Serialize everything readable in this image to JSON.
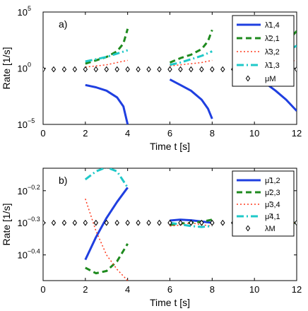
{
  "chart_data": [
    {
      "type": "line",
      "panel_label": "a)",
      "xlabel": "Time t [s]",
      "ylabel": "Rate [1/s]",
      "xlim": [
        0,
        12
      ],
      "xticks": [
        0,
        2,
        4,
        6,
        8,
        10,
        12
      ],
      "yscale": "log",
      "ylim_log10": [
        -5,
        5
      ],
      "yticks": [
        {
          "exp": -5,
          "label": "10",
          "sup": "−5"
        },
        {
          "exp": 0,
          "label": "10",
          "sup": "0"
        },
        {
          "exp": 5,
          "label": "10",
          "sup": "5"
        }
      ],
      "grid": false,
      "legend_position": "top-right",
      "series": [
        {
          "name": "λ̃1,4",
          "color": "#1f3fe0",
          "style": "solid",
          "width": 3,
          "segments": [
            [
              [
                2.0,
                -1.5
              ],
              [
                2.5,
                -1.7
              ],
              [
                3.0,
                -2.0
              ],
              [
                3.5,
                -2.6
              ],
              [
                3.8,
                -3.4
              ],
              [
                4.0,
                -5.0
              ]
            ],
            [
              [
                6.0,
                -1.0
              ],
              [
                6.5,
                -1.5
              ],
              [
                7.0,
                -2.0
              ],
              [
                7.5,
                -2.8
              ],
              [
                7.8,
                -3.6
              ],
              [
                8.0,
                -4.5
              ]
            ],
            [
              [
                10.0,
                -0.8
              ],
              [
                10.5,
                -1.3
              ],
              [
                11.0,
                -2.0
              ],
              [
                11.5,
                -2.8
              ],
              [
                12.0,
                -3.8
              ]
            ]
          ]
        },
        {
          "name": "λ̃2,1",
          "color": "#1e8a1e",
          "style": "dashed",
          "width": 3,
          "segments": [
            [
              [
                2.0,
                0.4
              ],
              [
                2.5,
                0.7
              ],
              [
                3.0,
                1.0
              ],
              [
                3.5,
                1.5
              ],
              [
                3.8,
                2.2
              ],
              [
                4.0,
                3.5
              ]
            ],
            [
              [
                6.0,
                0.5
              ],
              [
                6.5,
                0.9
              ],
              [
                7.0,
                1.2
              ],
              [
                7.5,
                1.7
              ],
              [
                7.8,
                2.4
              ],
              [
                8.0,
                3.4
              ]
            ],
            [
              [
                10.0,
                0.8
              ],
              [
                10.5,
                1.2
              ],
              [
                11.0,
                1.6
              ],
              [
                11.5,
                2.3
              ],
              [
                12.0,
                3.3
              ]
            ]
          ]
        },
        {
          "name": "λ̃3,2",
          "color": "#ff3b1f",
          "style": "dotted",
          "width": 1.5,
          "segments": [
            [
              [
                2.0,
                0.1
              ],
              [
                2.5,
                0.2
              ],
              [
                3.0,
                0.3
              ],
              [
                3.5,
                0.5
              ],
              [
                4.0,
                0.7
              ]
            ],
            [
              [
                6.0,
                0.2
              ],
              [
                6.5,
                0.3
              ],
              [
                7.0,
                0.4
              ],
              [
                7.5,
                0.5
              ],
              [
                8.0,
                0.7
              ]
            ],
            [
              [
                10.0,
                0.3
              ],
              [
                10.5,
                0.4
              ],
              [
                11.0,
                0.5
              ],
              [
                11.5,
                0.6
              ],
              [
                12.0,
                0.7
              ]
            ]
          ]
        },
        {
          "name": "λ̃1,3",
          "color": "#1fc8c8",
          "style": "dashdot",
          "width": 3,
          "segments": [
            [
              [
                2.0,
                0.6
              ],
              [
                2.5,
                0.8
              ],
              [
                3.0,
                1.0
              ],
              [
                3.5,
                1.3
              ],
              [
                4.0,
                1.6
              ]
            ],
            [
              [
                6.0,
                0.3
              ],
              [
                6.5,
                0.5
              ],
              [
                7.0,
                0.8
              ],
              [
                7.5,
                1.1
              ],
              [
                8.0,
                1.5
              ]
            ],
            [
              [
                10.0,
                0.5
              ],
              [
                10.5,
                0.8
              ],
              [
                11.0,
                1.1
              ],
              [
                11.5,
                1.5
              ],
              [
                12.0,
                2.0
              ]
            ]
          ]
        },
        {
          "name": "μM",
          "color": "#000000",
          "style": "marker-diamond",
          "points_x": [
            0,
            0.5,
            1,
            1.5,
            2,
            2.5,
            3,
            3.5,
            4,
            4.5,
            5,
            5.5,
            6,
            6.5,
            7,
            7.5,
            8,
            8.5,
            9,
            9.5,
            10,
            10.5,
            11,
            11.5,
            12
          ],
          "value_log10": -0.1
        }
      ]
    },
    {
      "type": "line",
      "panel_label": "b)",
      "xlabel": "Time t [s]",
      "ylabel": "Rate [1/s]",
      "xlim": [
        0,
        12
      ],
      "xticks": [
        0,
        2,
        4,
        6,
        8,
        10,
        12
      ],
      "yscale": "log",
      "ylim_log10": [
        -0.48,
        -0.13
      ],
      "yticks": [
        {
          "exp": -0.4,
          "label": "10",
          "sup": "−0.4"
        },
        {
          "exp": -0.3,
          "label": "10",
          "sup": "−0.3"
        },
        {
          "exp": -0.2,
          "label": "10",
          "sup": "−0.2"
        }
      ],
      "grid": false,
      "legend_position": "top-right",
      "series": [
        {
          "name": "μ̃1,2",
          "color": "#1f3fe0",
          "style": "solid",
          "width": 3,
          "segments": [
            [
              [
                2.0,
                -0.415
              ],
              [
                2.5,
                -0.345
              ],
              [
                3.0,
                -0.285
              ],
              [
                3.5,
                -0.235
              ],
              [
                4.0,
                -0.19
              ]
            ],
            [
              [
                6.0,
                -0.293
              ],
              [
                6.5,
                -0.29
              ],
              [
                7.0,
                -0.292
              ],
              [
                7.5,
                -0.296
              ],
              [
                8.0,
                -0.3
              ]
            ],
            [
              [
                10.0,
                -0.3
              ],
              [
                11.0,
                -0.3
              ],
              [
                12.0,
                -0.3
              ]
            ]
          ]
        },
        {
          "name": "μ̃2,3",
          "color": "#1e8a1e",
          "style": "dashed",
          "width": 3,
          "segments": [
            [
              [
                2.0,
                -0.44
              ],
              [
                2.5,
                -0.457
              ],
              [
                3.0,
                -0.45
              ],
              [
                3.5,
                -0.42
              ],
              [
                4.0,
                -0.365
              ]
            ],
            [
              [
                6.0,
                -0.307
              ],
              [
                6.5,
                -0.302
              ],
              [
                7.0,
                -0.3
              ],
              [
                7.5,
                -0.297
              ],
              [
                8.0,
                -0.29
              ]
            ],
            [
              [
                10.0,
                -0.3
              ],
              [
                11.0,
                -0.3
              ],
              [
                12.0,
                -0.3
              ]
            ]
          ]
        },
        {
          "name": "μ̃3,4",
          "color": "#ff3b1f",
          "style": "dotted",
          "width": 1.5,
          "segments": [
            [
              [
                2.0,
                -0.225
              ],
              [
                2.5,
                -0.325
              ],
              [
                3.0,
                -0.4
              ],
              [
                3.5,
                -0.445
              ],
              [
                4.0,
                -0.48
              ]
            ],
            [
              [
                6.0,
                -0.31
              ],
              [
                6.5,
                -0.307
              ],
              [
                7.0,
                -0.3
              ],
              [
                7.5,
                -0.306
              ],
              [
                8.0,
                -0.31
              ]
            ],
            [
              [
                10.0,
                -0.3
              ],
              [
                11.0,
                -0.3
              ],
              [
                12.0,
                -0.3
              ]
            ]
          ]
        },
        {
          "name": "μ̃4,1",
          "color": "#1fc8c8",
          "style": "dashdot",
          "width": 3,
          "segments": [
            [
              [
                2.0,
                -0.165
              ],
              [
                2.5,
                -0.14
              ],
              [
                3.0,
                -0.127
              ],
              [
                3.5,
                -0.14
              ],
              [
                4.0,
                -0.19
              ]
            ],
            [
              [
                6.0,
                -0.3
              ],
              [
                6.5,
                -0.305
              ],
              [
                7.0,
                -0.31
              ],
              [
                7.5,
                -0.313
              ],
              [
                8.0,
                -0.31
              ]
            ],
            [
              [
                10.0,
                -0.3
              ],
              [
                11.0,
                -0.3
              ],
              [
                12.0,
                -0.3
              ]
            ]
          ]
        },
        {
          "name": "λM",
          "color": "#000000",
          "style": "marker-diamond",
          "points_x": [
            0,
            0.5,
            1,
            1.5,
            2,
            2.5,
            3,
            3.5,
            4,
            4.5,
            5,
            5.5,
            6,
            6.5,
            7,
            7.5,
            8,
            8.5,
            9,
            9.5,
            10,
            10.5,
            11,
            11.5,
            12
          ],
          "value_log10": -0.3
        }
      ]
    }
  ]
}
